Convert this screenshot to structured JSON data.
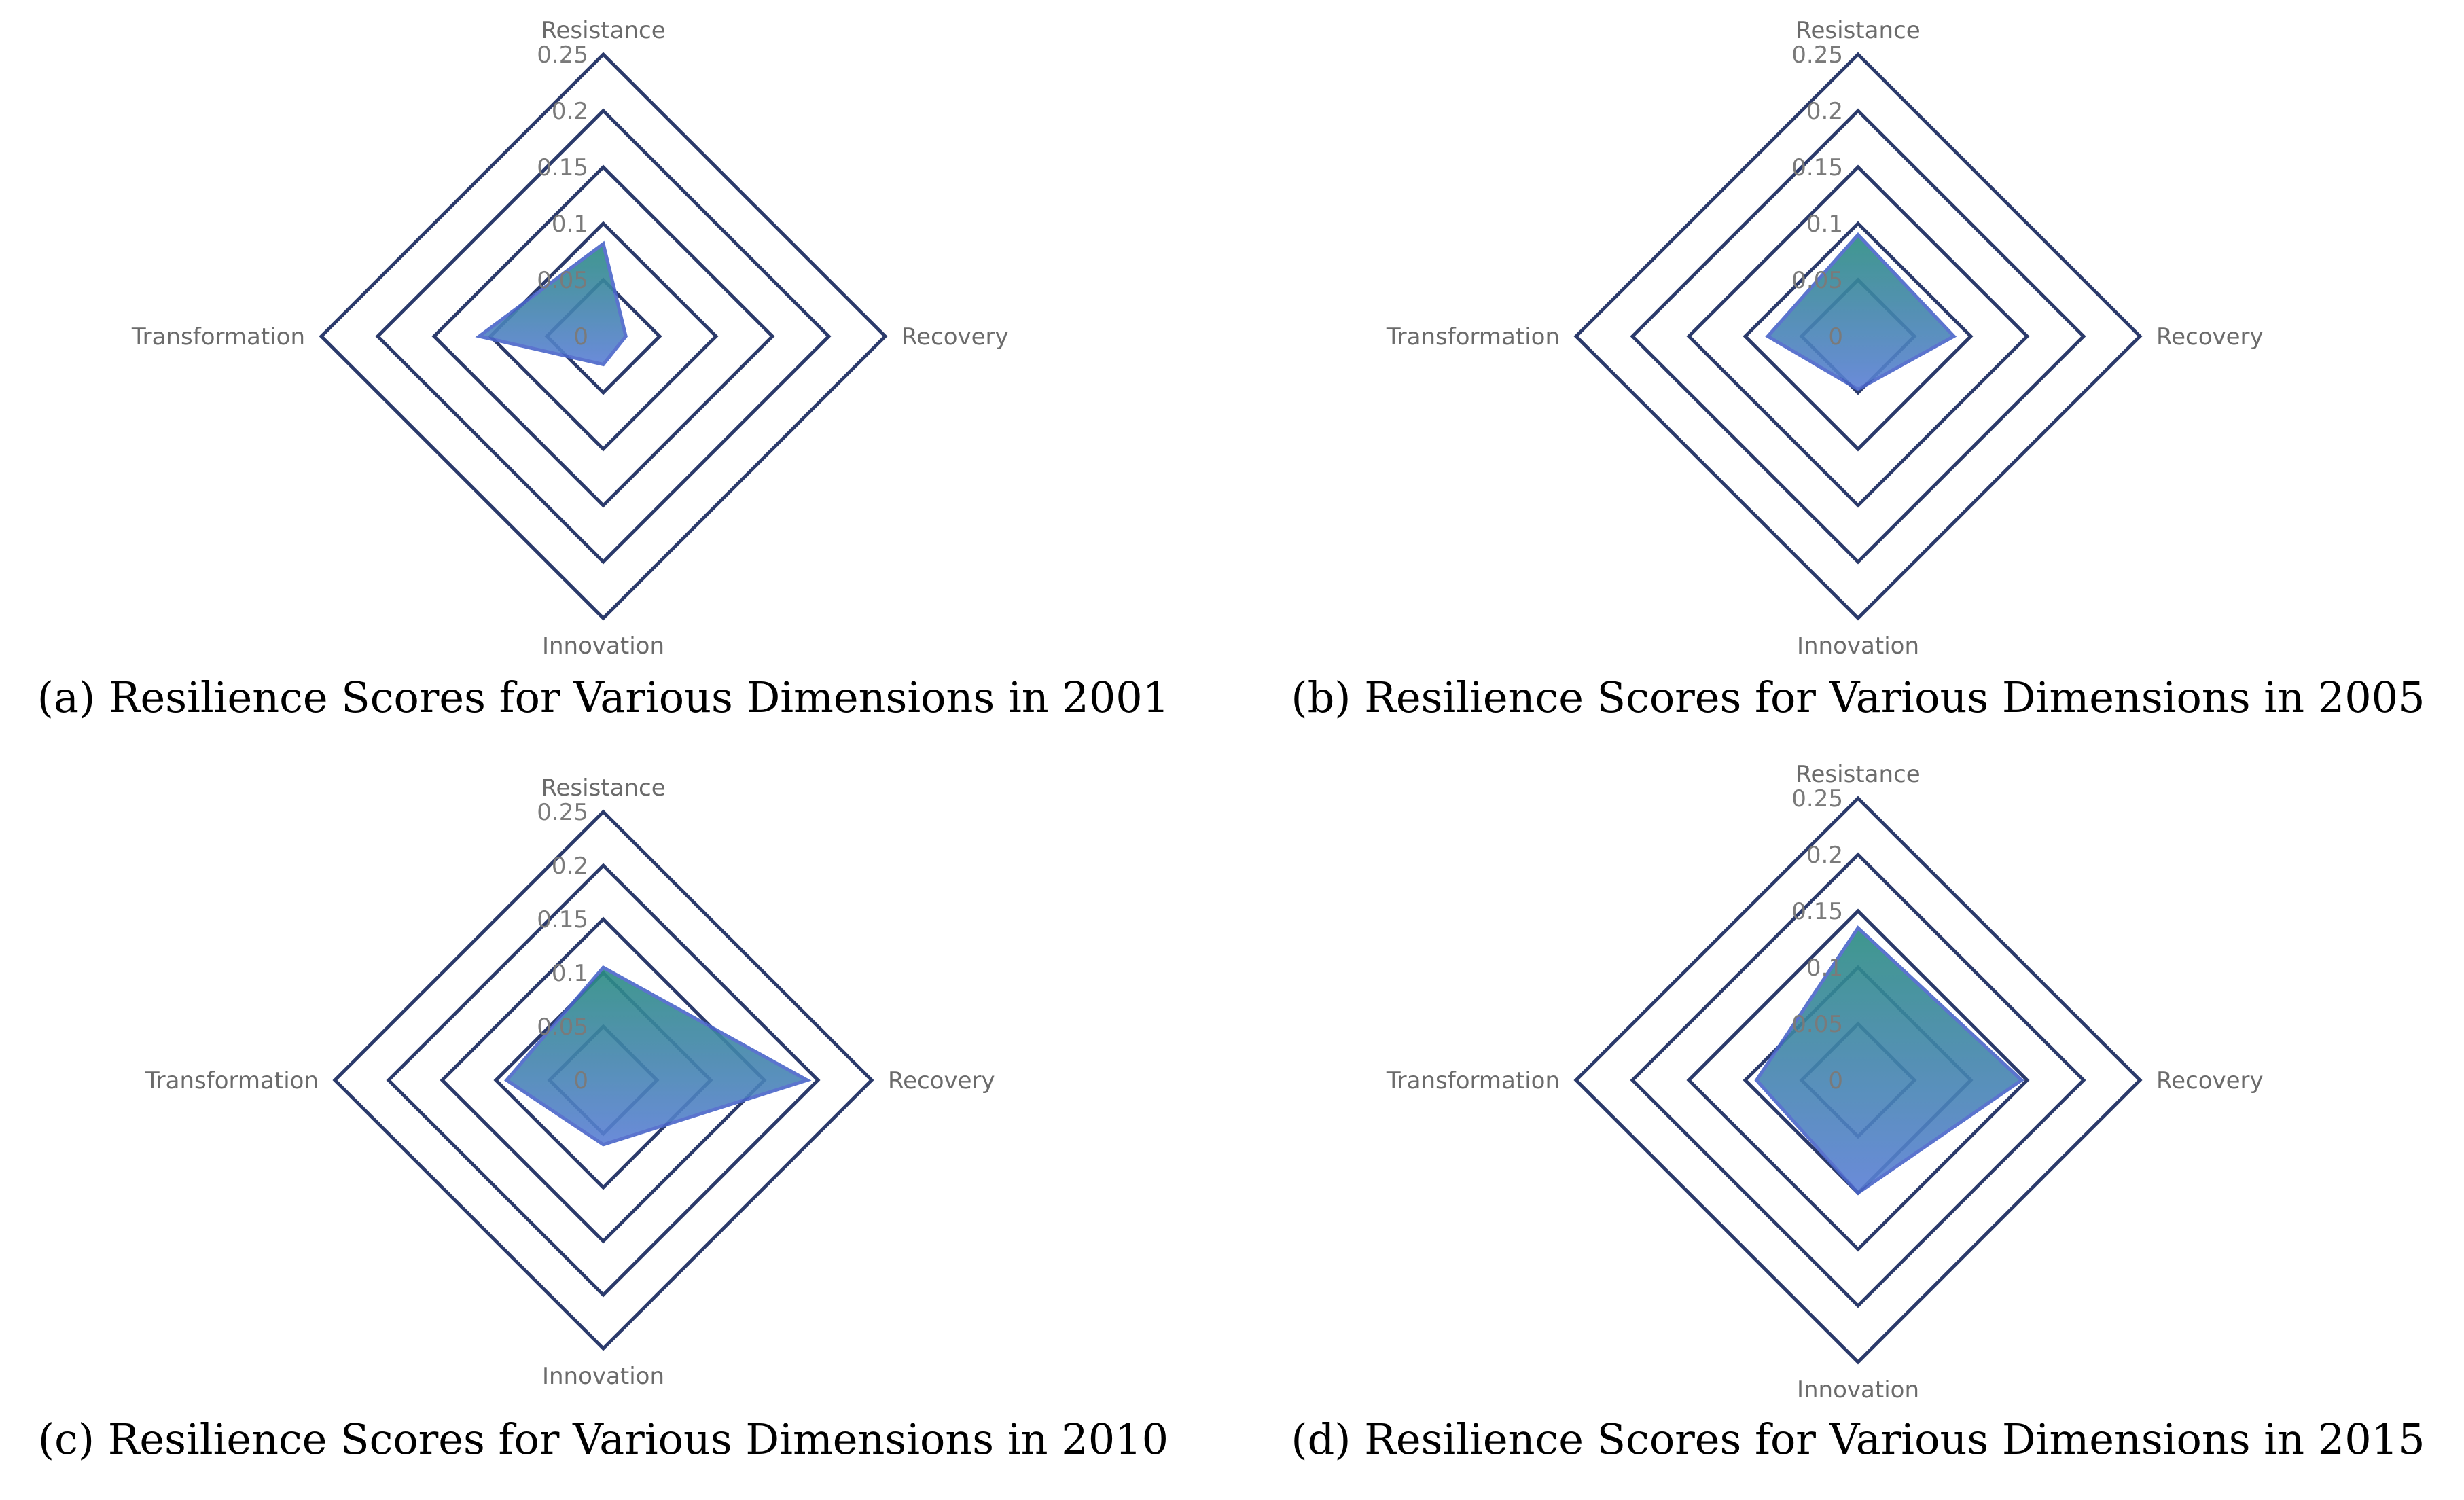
{
  "chart_data": [
    {
      "type": "radar",
      "caption": "(a) Resilience Scores for Various Dimensions in 2001",
      "axes": [
        "Resistance",
        "Recovery",
        "Innovation",
        "Transformation"
      ],
      "ticks": [
        "0",
        "0.05",
        "0.1",
        "0.15",
        "0.2",
        "0.25"
      ],
      "range": [
        0,
        0.25
      ],
      "values": [
        0.082,
        0.02,
        0.025,
        0.11
      ]
    },
    {
      "type": "radar",
      "caption": "(b) Resilience Scores for Various Dimensions in 2005",
      "axes": [
        "Resistance",
        "Recovery",
        "Innovation",
        "Transformation"
      ],
      "ticks": [
        "0",
        "0.05",
        "0.1",
        "0.15",
        "0.2",
        "0.25"
      ],
      "range": [
        0,
        0.25
      ],
      "values": [
        0.09,
        0.085,
        0.047,
        0.08
      ]
    },
    {
      "type": "radar",
      "caption": "(c) Resilience Scores for Various Dimensions in 2010",
      "axes": [
        "Resistance",
        "Recovery",
        "Innovation",
        "Transformation"
      ],
      "ticks": [
        "0",
        "0.05",
        "0.1",
        "0.15",
        "0.2",
        "0.25"
      ],
      "range": [
        0,
        0.25
      ],
      "values": [
        0.105,
        0.19,
        0.06,
        0.09
      ]
    },
    {
      "type": "radar",
      "caption": "(d) Resilience Scores for Various Dimensions in 2015",
      "axes": [
        "Resistance",
        "Recovery",
        "Innovation",
        "Transformation"
      ],
      "ticks": [
        "0",
        "0.05",
        "0.1",
        "0.15",
        "0.2",
        "0.25"
      ],
      "range": [
        0,
        0.25
      ],
      "values": [
        0.135,
        0.145,
        0.1,
        0.09
      ]
    }
  ],
  "colors": {
    "ring": "#2b3a6b",
    "area_top": "#2a8c82",
    "area_bottom": "#5b7fd6",
    "area_stroke": "#4a66c9"
  }
}
